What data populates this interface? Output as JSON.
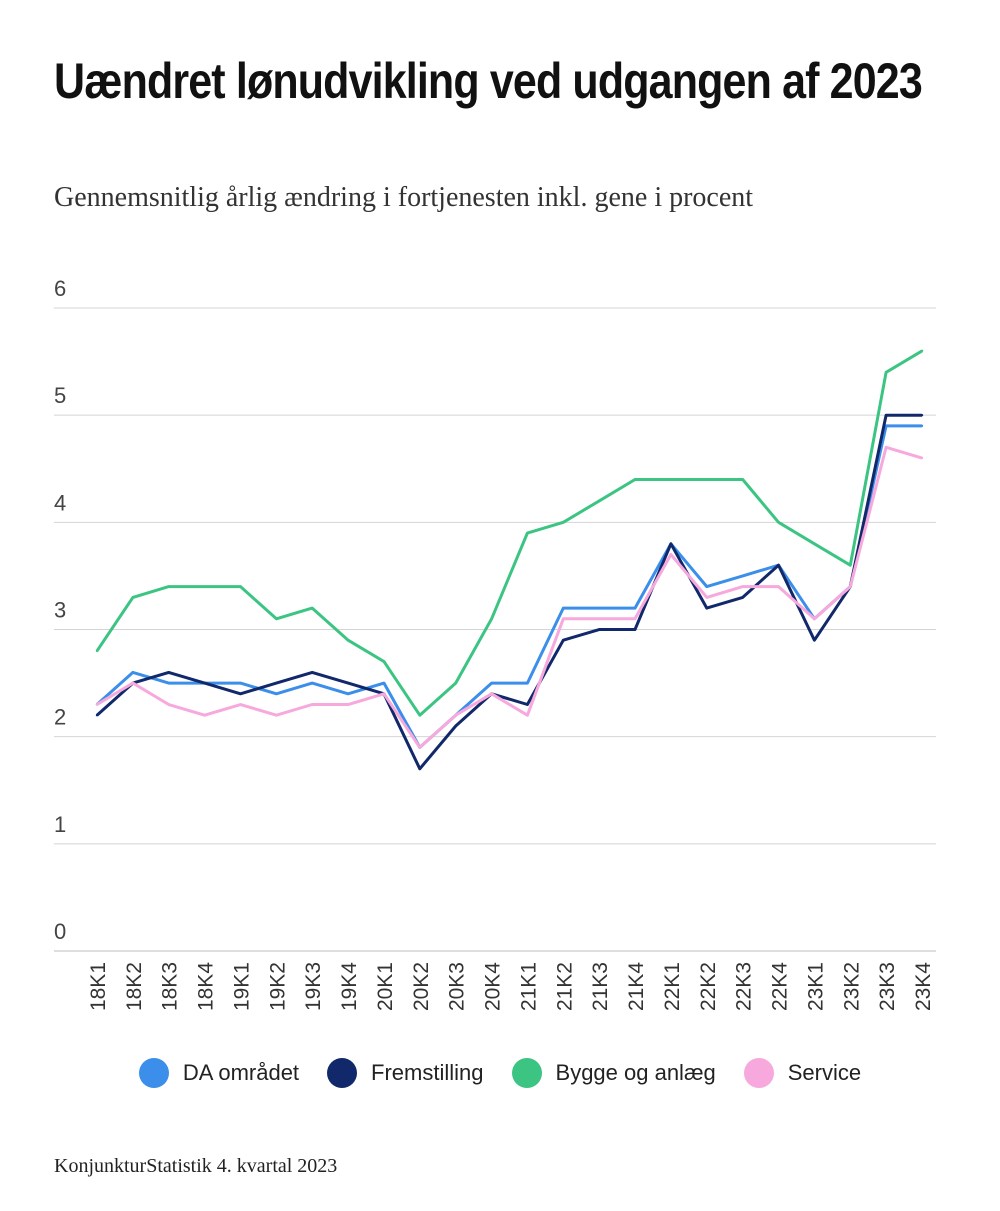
{
  "title": "Uændret lønudvikling ved udgangen af 2023",
  "subtitle": "Gennemsnitlig årlig ændring i fortjenesten inkl. gene i procent",
  "footer": "KonjunkturStatistik 4. kvartal 2023",
  "chart_data": {
    "type": "line",
    "title": "Uændret lønudvikling ved udgangen af 2023",
    "subtitle": "Gennemsnitlig årlig ændring i fortjenesten inkl. gene i procent",
    "xlabel": "",
    "ylabel": "",
    "ylim": [
      0,
      6
    ],
    "yticks": [
      "0",
      "1",
      "2",
      "3",
      "4",
      "5",
      "6"
    ],
    "grid": true,
    "legend_position": "bottom",
    "categories": [
      "18K1",
      "18K2",
      "18K3",
      "18K4",
      "19K1",
      "19K2",
      "19K3",
      "19K4",
      "20K1",
      "20K2",
      "20K3",
      "20K4",
      "21K1",
      "21K2",
      "21K3",
      "21K4",
      "22K1",
      "22K2",
      "22K3",
      "22K4",
      "23K1",
      "23K2",
      "23K3",
      "23K4"
    ],
    "series": [
      {
        "name": "DA området",
        "color": "#3b8eea",
        "values": [
          2.3,
          2.6,
          2.5,
          2.5,
          2.5,
          2.4,
          2.5,
          2.4,
          2.5,
          1.9,
          2.2,
          2.5,
          2.5,
          3.2,
          3.2,
          3.2,
          3.8,
          3.4,
          3.5,
          3.6,
          3.1,
          3.4,
          4.9,
          4.9
        ]
      },
      {
        "name": "Fremstilling",
        "color": "#11286b",
        "values": [
          2.2,
          2.5,
          2.6,
          2.5,
          2.4,
          2.5,
          2.6,
          2.5,
          2.4,
          1.7,
          2.1,
          2.4,
          2.3,
          2.9,
          3.0,
          3.0,
          3.8,
          3.2,
          3.3,
          3.6,
          2.9,
          3.4,
          5.0,
          5.0
        ]
      },
      {
        "name": "Bygge og anlæg",
        "color": "#3cc483",
        "values": [
          2.8,
          3.3,
          3.4,
          3.4,
          3.4,
          3.1,
          3.2,
          2.9,
          2.7,
          2.2,
          2.5,
          3.1,
          3.9,
          4.0,
          4.2,
          4.4,
          4.4,
          4.4,
          4.4,
          4.0,
          3.8,
          3.6,
          5.4,
          5.6
        ]
      },
      {
        "name": "Service",
        "color": "#f7a8dc",
        "values": [
          2.3,
          2.5,
          2.3,
          2.2,
          2.3,
          2.2,
          2.3,
          2.3,
          2.4,
          1.9,
          2.2,
          2.4,
          2.2,
          3.1,
          3.1,
          3.1,
          3.7,
          3.3,
          3.4,
          3.4,
          3.1,
          3.4,
          4.7,
          4.6
        ]
      }
    ]
  }
}
